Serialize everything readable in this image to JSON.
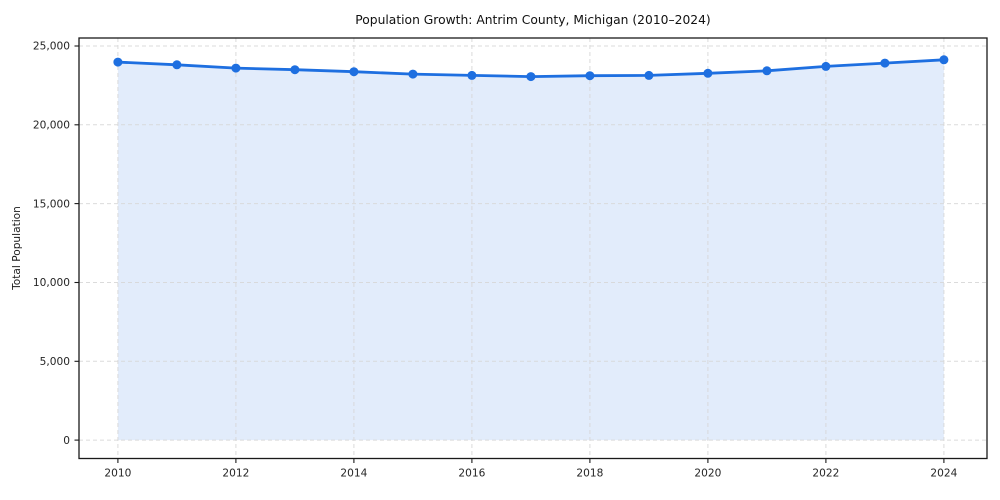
{
  "figure": {
    "title": "Population Growth: Antrim County, Michigan (2010–2024)"
  },
  "chart_data": {
    "type": "area",
    "title": "Population Growth: Antrim County, Michigan (2010–2024)",
    "xlabel": "",
    "ylabel": "Total Population",
    "x": [
      2010,
      2011,
      2012,
      2013,
      2014,
      2015,
      2016,
      2017,
      2018,
      2019,
      2020,
      2021,
      2022,
      2023,
      2024
    ],
    "series": [
      {
        "name": "Total Population",
        "values": [
          23980,
          23810,
          23600,
          23500,
          23370,
          23220,
          23140,
          23060,
          23120,
          23140,
          23270,
          23430,
          23710,
          23920,
          24130
        ]
      }
    ],
    "xticks": [
      2010,
      2012,
      2014,
      2016,
      2018,
      2020,
      2022,
      2024
    ],
    "xtick_labels": [
      "2010",
      "2012",
      "2014",
      "2016",
      "2018",
      "2020",
      "2022",
      "2024"
    ],
    "yticks": [
      0,
      5000,
      10000,
      15000,
      20000,
      25000
    ],
    "ytick_labels": [
      "0",
      "5,000",
      "10,000",
      "15,000",
      "20,000",
      "25,000"
    ],
    "xlim": [
      2009.34,
      2024.73
    ],
    "ylim": [
      -1170,
      25510
    ],
    "grid": true,
    "grid_style": "dashed",
    "legend": false,
    "line_color": "#1e6fe0",
    "marker_color": "#1e6fe0",
    "fill_color": "rgba(30,111,224,0.13)",
    "grid_color": "#d8d8d8",
    "spine_color": "#1a1a1a",
    "plot_bg_color": "#ffffff"
  }
}
